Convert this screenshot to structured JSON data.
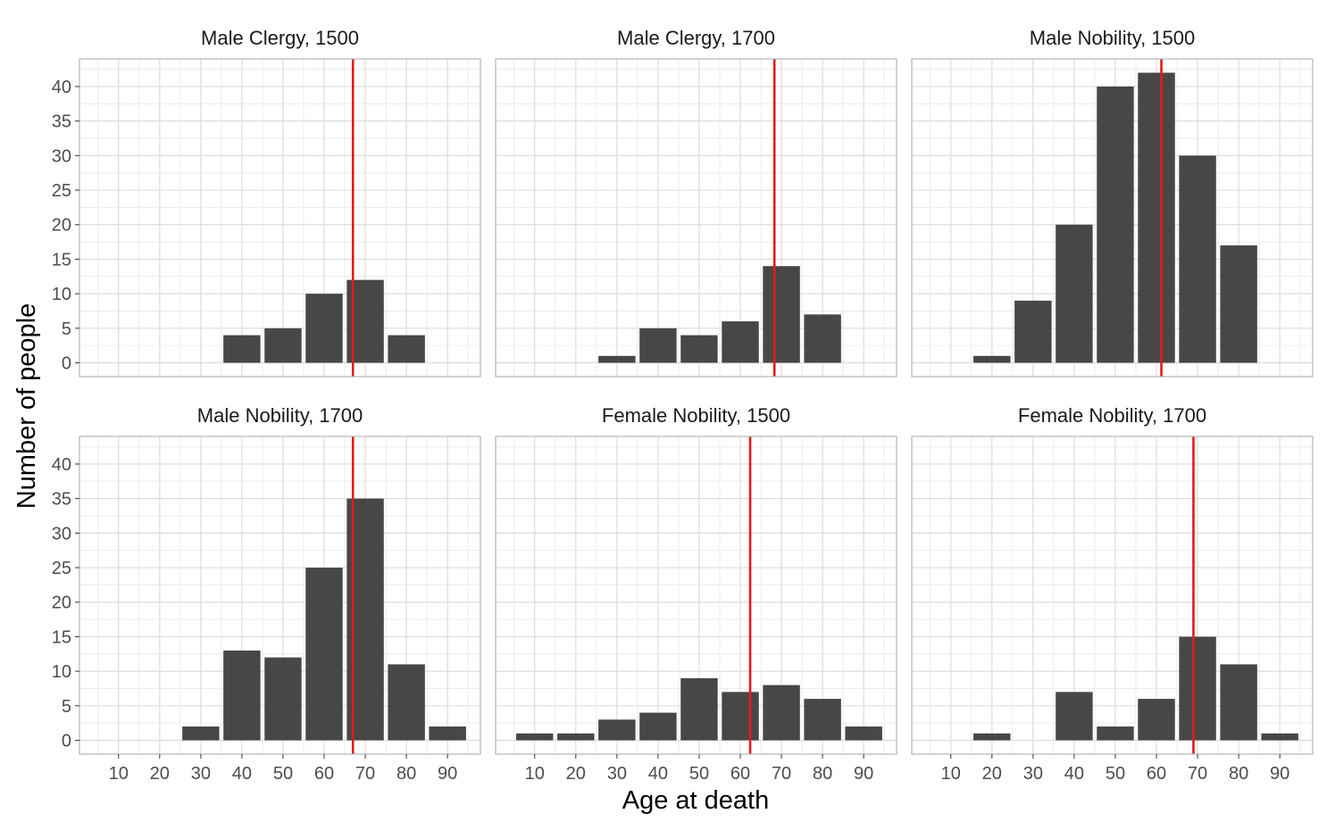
{
  "chart_data": {
    "type": "bar",
    "xlabel": "Age at death",
    "ylabel": "Number of people",
    "x_ticks": [
      10,
      20,
      30,
      40,
      50,
      60,
      70,
      80,
      90
    ],
    "x_tick_labels": [
      "10",
      "20",
      "30",
      "40",
      "50",
      "60",
      "70",
      "80",
      "90"
    ],
    "y_ticks": [
      0,
      5,
      10,
      15,
      20,
      25,
      30,
      35,
      40
    ],
    "y_tick_labels": [
      "0",
      "5",
      "10",
      "15",
      "20",
      "25",
      "30",
      "35",
      "40"
    ],
    "xlim": [
      0.5,
      98
    ],
    "ylim": [
      -2,
      44
    ],
    "bin_width": 10,
    "grid": true,
    "colors": {
      "bar": "#474747",
      "mean_line": "#e41a1c",
      "grid_major": "#dcdcdc",
      "grid_minor": "#ececec",
      "border": "#b3b3b3"
    },
    "panels": [
      {
        "title": "Male Clergy, 1500",
        "bins": [
          10,
          20,
          30,
          40,
          50,
          60,
          70,
          80,
          90
        ],
        "values": [
          0,
          0,
          0,
          4,
          5,
          10,
          12,
          4,
          0
        ],
        "mean_line": 67
      },
      {
        "title": "Male Clergy, 1700",
        "bins": [
          10,
          20,
          30,
          40,
          50,
          60,
          70,
          80,
          90
        ],
        "values": [
          0,
          0,
          1,
          5,
          4,
          6,
          14,
          7,
          0
        ],
        "mean_line": 68.3
      },
      {
        "title": "Male Nobility, 1500",
        "bins": [
          10,
          20,
          30,
          40,
          50,
          60,
          70,
          80,
          90
        ],
        "values": [
          0,
          1,
          9,
          20,
          40,
          42,
          30,
          17,
          0
        ],
        "mean_line": 61.2
      },
      {
        "title": "Male Nobility, 1700",
        "bins": [
          10,
          20,
          30,
          40,
          50,
          60,
          70,
          80,
          90
        ],
        "values": [
          0,
          0,
          2,
          13,
          12,
          25,
          35,
          11,
          2
        ],
        "mean_line": 67
      },
      {
        "title": "Female Nobility, 1500",
        "bins": [
          10,
          20,
          30,
          40,
          50,
          60,
          70,
          80,
          90
        ],
        "values": [
          1,
          1,
          3,
          4,
          9,
          7,
          8,
          6,
          2
        ],
        "mean_line": 62.4
      },
      {
        "title": "Female Nobility, 1700",
        "bins": [
          10,
          20,
          30,
          40,
          50,
          60,
          70,
          80,
          90
        ],
        "values": [
          0,
          1,
          0,
          7,
          2,
          6,
          15,
          11,
          1
        ],
        "mean_line": 69
      }
    ]
  }
}
